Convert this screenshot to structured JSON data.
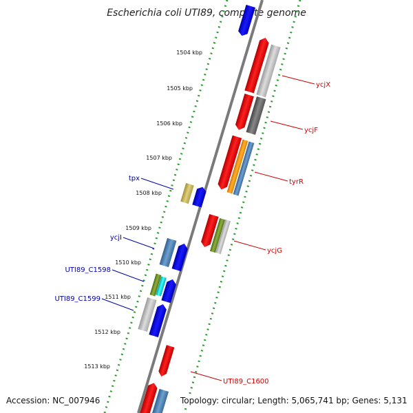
{
  "title": "Escherichia coli UTI89, complete genome",
  "kbp_ticks": [
    "1504 kbp",
    "1505 kbp",
    "1506 kbp",
    "1507 kbp",
    "1508 kbp",
    "1509 kbp",
    "1510 kbp",
    "1511 kbp",
    "1512 kbp",
    "1513 kbp"
  ],
  "gene_labels_right": [
    "ycjX",
    "ycjF",
    "tyrR",
    "ycjG",
    "UTI89_C1600"
  ],
  "gene_labels_left": [
    "tpx",
    "ycjI",
    "UTI89_C1598",
    "UTI89_C1599"
  ],
  "footer": {
    "accession": "Accession: NC_007946",
    "topology": "Topology: circular; Length: 5,065,741 bp; Genes: 5,131"
  },
  "colors": {
    "backbone": "#888888",
    "dotted_track": "#2e9a2e",
    "gene_red": "#ee0000",
    "gene_blue": "#0000ee",
    "gene_gray": "#bbbbbb",
    "gene_darkgray": "#666666",
    "gene_orange": "#ff9900",
    "gene_steelblue": "#4682b4",
    "gene_olive": "#6b8e23",
    "gene_khaki": "#c8b560",
    "gene_cyan": "#00cccc",
    "label_right": "#cc0000",
    "label_left": "#0000aa"
  }
}
